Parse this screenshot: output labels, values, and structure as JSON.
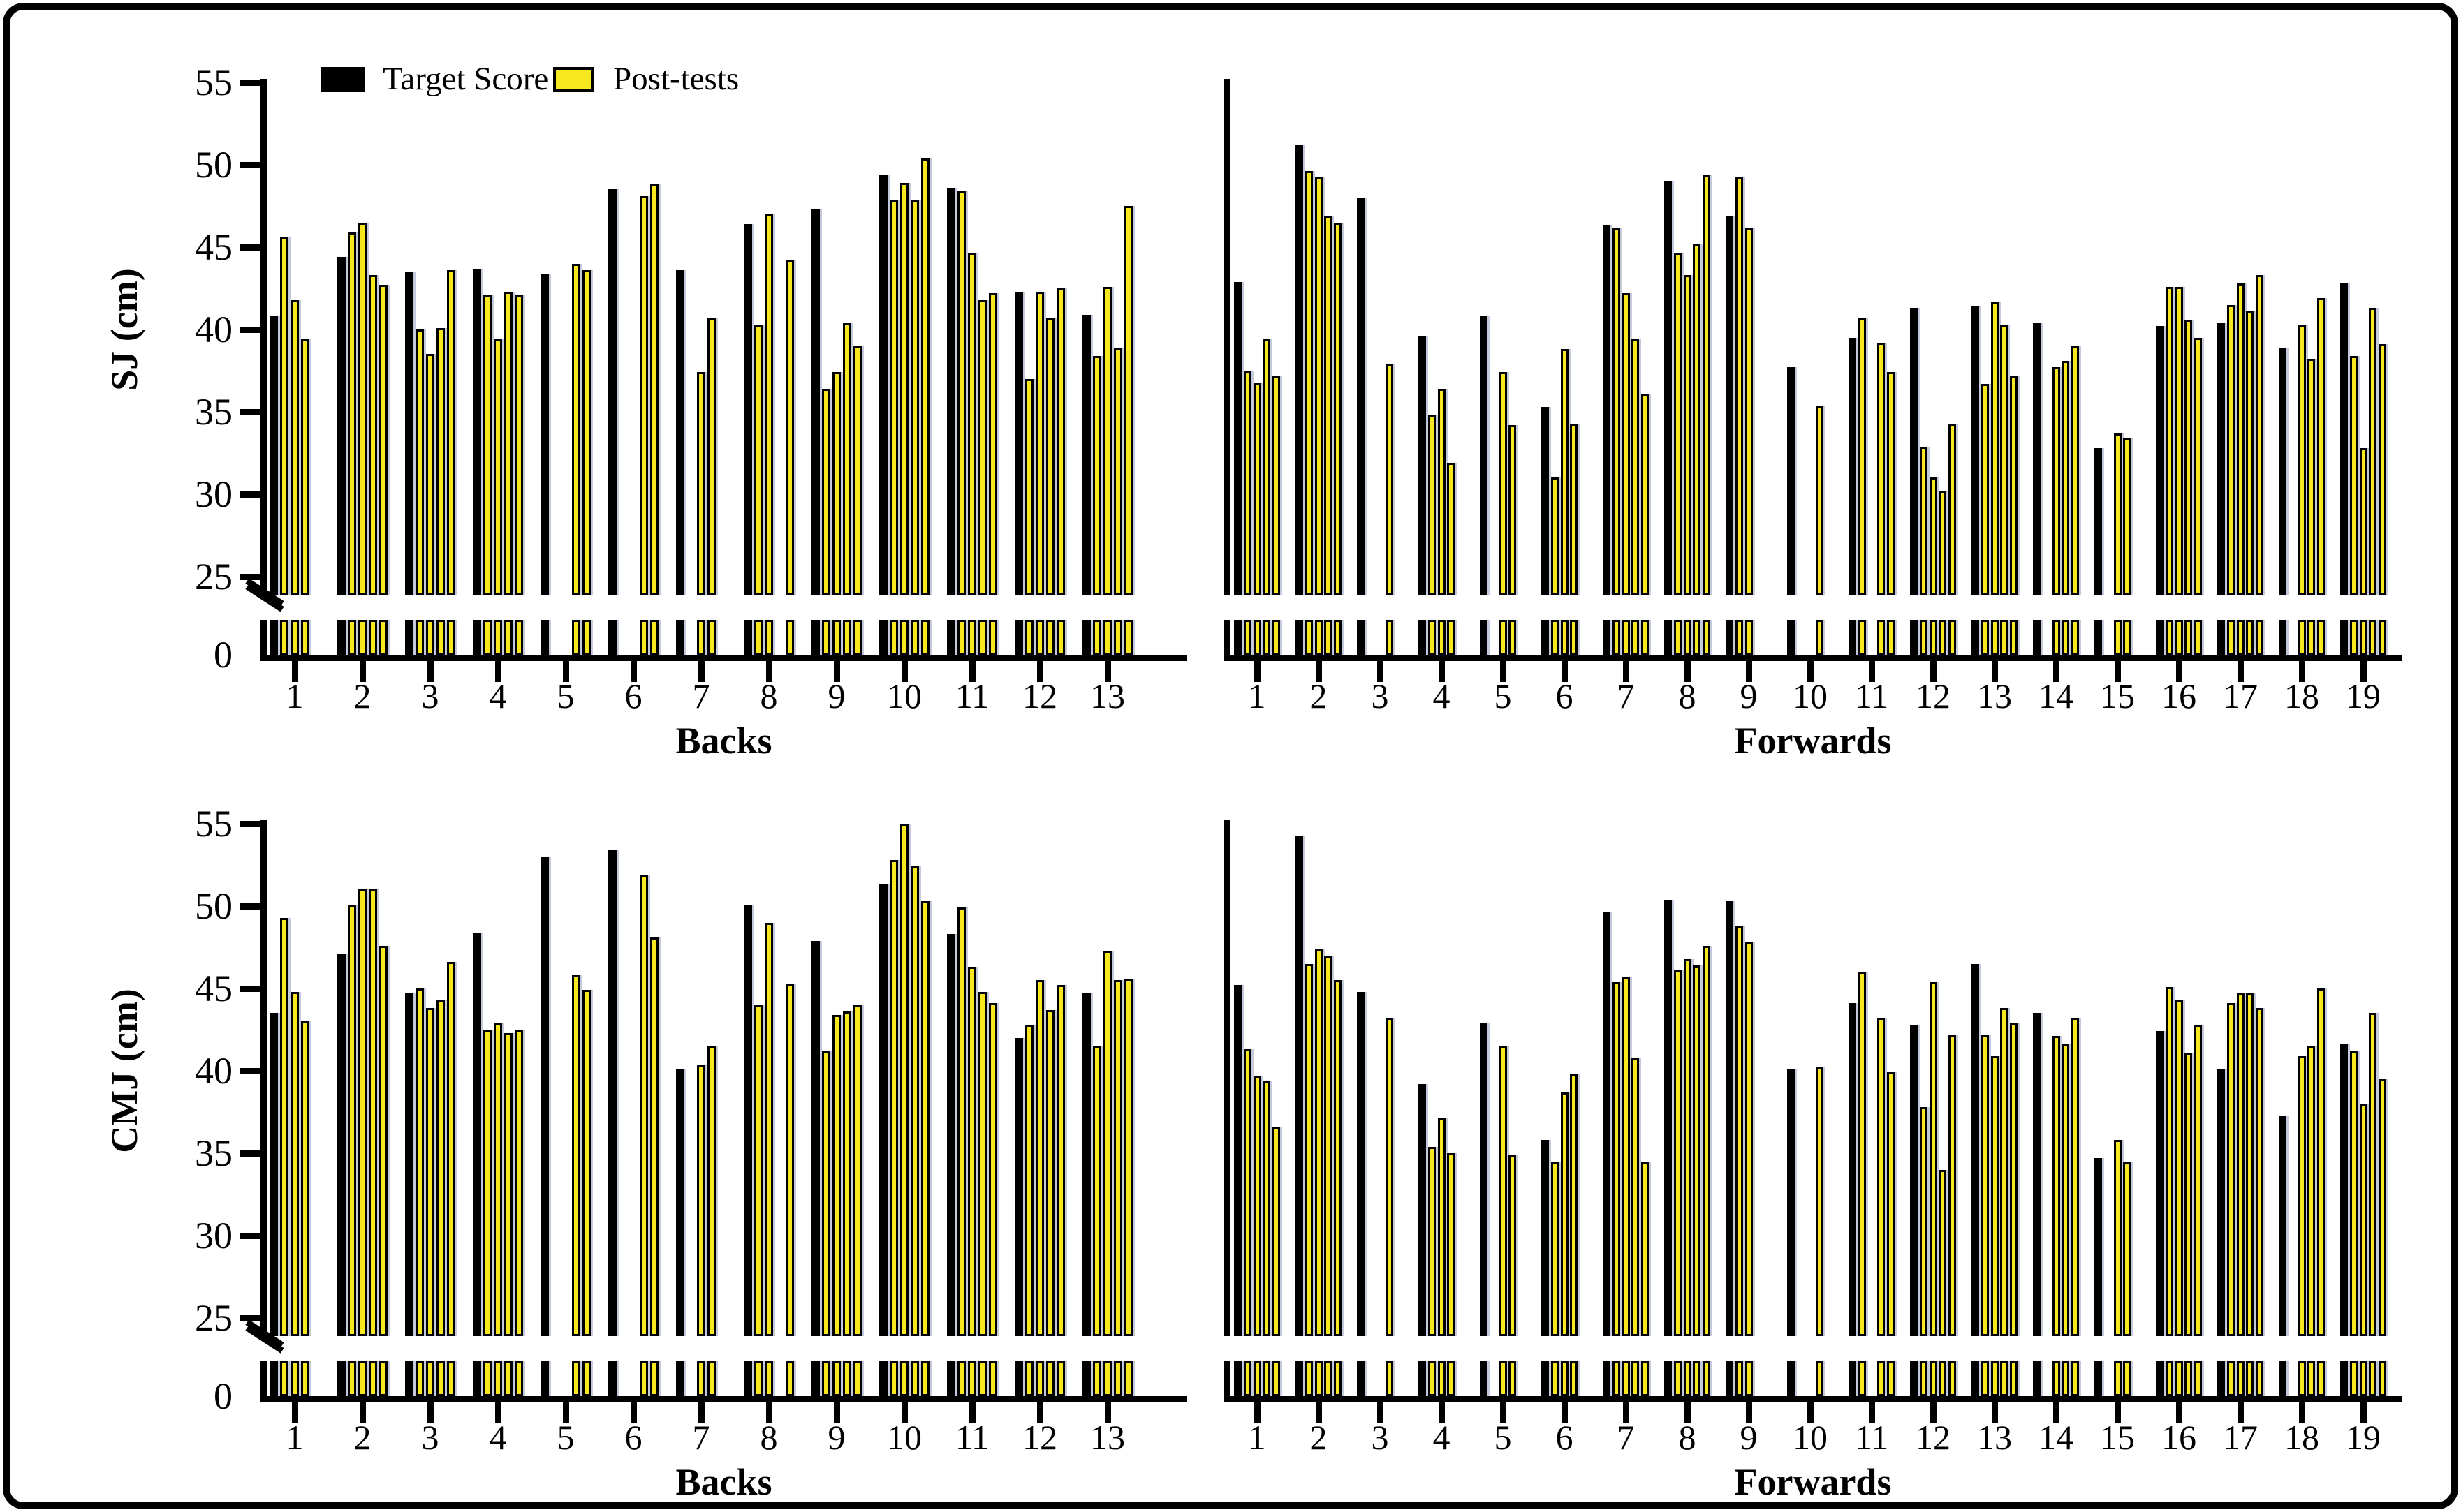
{
  "legend": {
    "target_label": "Target Score",
    "post_label": "Post-tests"
  },
  "colors": {
    "target": "#000000",
    "post": "#F7E71E",
    "bar_edge": "#949CBE"
  },
  "axis": {
    "y_ticks": [
      55,
      50,
      45,
      40,
      35,
      30,
      25
    ],
    "y_zero_label": "0",
    "axis_break": true,
    "y_main_range": [
      25,
      55
    ]
  },
  "chart_data": [
    {
      "type": "bar",
      "id": "sj-backs",
      "title": "Backs",
      "ylabel": "SJ (cm)",
      "xlabel": "Backs",
      "ylim_main": [
        25,
        55
      ],
      "axis_break": true,
      "legend_position": "top-left",
      "series_names": [
        "Target Score",
        "Post-tests"
      ],
      "groups": [
        {
          "x": "1",
          "target": 40.8,
          "post": [
            45.6,
            41.8,
            39.4,
            null
          ]
        },
        {
          "x": "2",
          "target": 44.4,
          "post": [
            45.9,
            46.5,
            43.3,
            42.7
          ]
        },
        {
          "x": "3",
          "target": 43.5,
          "post": [
            40.0,
            38.5,
            40.1,
            43.6
          ]
        },
        {
          "x": "4",
          "target": 43.7,
          "post": [
            42.1,
            39.4,
            42.3,
            42.1
          ]
        },
        {
          "x": "5",
          "target": 43.4,
          "post": [
            null,
            null,
            44.0,
            43.6
          ]
        },
        {
          "x": "6",
          "target": 48.5,
          "post": [
            null,
            null,
            48.1,
            48.8
          ]
        },
        {
          "x": "7",
          "target": 43.6,
          "post": [
            null,
            37.4,
            40.7,
            null
          ]
        },
        {
          "x": "8",
          "target": 46.4,
          "post": [
            40.3,
            47.0,
            null,
            44.2
          ]
        },
        {
          "x": "9",
          "target": 47.3,
          "post": [
            36.4,
            37.4,
            40.4,
            39.0
          ]
        },
        {
          "x": "10",
          "target": 49.4,
          "post": [
            47.9,
            48.9,
            47.9,
            50.4
          ]
        },
        {
          "x": "11",
          "target": 48.6,
          "post": [
            48.4,
            44.6,
            41.8,
            42.2
          ]
        },
        {
          "x": "12",
          "target": 42.3,
          "post": [
            37.0,
            42.3,
            40.7,
            42.5
          ]
        },
        {
          "x": "13",
          "target": 40.9,
          "post": [
            38.4,
            42.6,
            38.9,
            47.5
          ]
        }
      ]
    },
    {
      "type": "bar",
      "id": "sj-forwards",
      "title": "Forwards",
      "ylabel": "SJ (cm)",
      "xlabel": "Forwards",
      "ylim_main": [
        25,
        55
      ],
      "axis_break": true,
      "series_names": [
        "Target Score",
        "Post-tests"
      ],
      "groups": [
        {
          "x": "1",
          "target": 42.9,
          "post": [
            37.5,
            36.8,
            39.4,
            37.2
          ]
        },
        {
          "x": "2",
          "target": 51.2,
          "post": [
            49.6,
            49.3,
            46.9,
            46.5
          ]
        },
        {
          "x": "3",
          "target": 48.0,
          "post": [
            null,
            null,
            37.9,
            null
          ]
        },
        {
          "x": "4",
          "target": 39.6,
          "post": [
            34.8,
            36.4,
            31.9,
            null
          ]
        },
        {
          "x": "5",
          "target": 40.8,
          "post": [
            null,
            37.4,
            34.2,
            null
          ]
        },
        {
          "x": "6",
          "target": 35.3,
          "post": [
            31.0,
            38.8,
            34.3,
            null
          ]
        },
        {
          "x": "7",
          "target": 46.3,
          "post": [
            46.2,
            42.2,
            39.4,
            36.1
          ]
        },
        {
          "x": "8",
          "target": 49.0,
          "post": [
            44.6,
            43.3,
            45.2,
            49.4
          ]
        },
        {
          "x": "9",
          "target": 46.9,
          "post": [
            49.3,
            46.2,
            null,
            null
          ]
        },
        {
          "x": "10",
          "target": 37.7,
          "post": [
            null,
            null,
            35.4,
            null
          ]
        },
        {
          "x": "11",
          "target": 39.5,
          "post": [
            40.7,
            null,
            39.2,
            37.4
          ]
        },
        {
          "x": "12",
          "target": 41.3,
          "post": [
            32.9,
            31.0,
            30.2,
            34.3
          ]
        },
        {
          "x": "13",
          "target": 41.4,
          "post": [
            36.7,
            41.7,
            40.3,
            37.2
          ]
        },
        {
          "x": "14",
          "target": 40.4,
          "post": [
            null,
            37.7,
            38.1,
            39.0
          ]
        },
        {
          "x": "15",
          "target": 32.8,
          "post": [
            null,
            33.7,
            33.4,
            null
          ]
        },
        {
          "x": "16",
          "target": 40.2,
          "post": [
            42.6,
            42.6,
            40.6,
            39.5
          ]
        },
        {
          "x": "17",
          "target": 40.4,
          "post": [
            41.5,
            42.8,
            41.1,
            43.3
          ]
        },
        {
          "x": "18",
          "target": 38.9,
          "post": [
            null,
            40.3,
            38.2,
            41.9
          ]
        },
        {
          "x": "19",
          "target": 42.8,
          "post": [
            38.4,
            32.8,
            41.3,
            39.1
          ]
        }
      ]
    },
    {
      "type": "bar",
      "id": "cmj-backs",
      "title": "Backs",
      "ylabel": "CMJ (cm)",
      "xlabel": "Backs",
      "ylim_main": [
        25,
        55
      ],
      "axis_break": true,
      "series_names": [
        "Target Score",
        "Post-tests"
      ],
      "groups": [
        {
          "x": "1",
          "target": 43.5,
          "post": [
            49.3,
            44.8,
            43.0,
            null
          ]
        },
        {
          "x": "2",
          "target": 47.1,
          "post": [
            50.1,
            51.0,
            51.0,
            47.6
          ]
        },
        {
          "x": "3",
          "target": 44.7,
          "post": [
            45.0,
            43.8,
            44.3,
            46.6
          ]
        },
        {
          "x": "4",
          "target": 48.4,
          "post": [
            42.5,
            42.9,
            42.3,
            42.5
          ]
        },
        {
          "x": "5",
          "target": 53.0,
          "post": [
            null,
            null,
            45.8,
            44.9
          ]
        },
        {
          "x": "6",
          "target": 53.4,
          "post": [
            null,
            null,
            51.9,
            48.1
          ]
        },
        {
          "x": "7",
          "target": 40.1,
          "post": [
            null,
            40.4,
            41.5,
            null
          ]
        },
        {
          "x": "8",
          "target": 50.1,
          "post": [
            44.0,
            49.0,
            null,
            45.3
          ]
        },
        {
          "x": "9",
          "target": 47.9,
          "post": [
            41.2,
            43.4,
            43.6,
            44.0
          ]
        },
        {
          "x": "10",
          "target": 51.3,
          "post": [
            52.8,
            55.0,
            52.4,
            50.3
          ]
        },
        {
          "x": "11",
          "target": 48.3,
          "post": [
            49.9,
            46.3,
            44.8,
            44.1
          ]
        },
        {
          "x": "12",
          "target": 42.0,
          "post": [
            42.8,
            45.5,
            43.7,
            45.2
          ]
        },
        {
          "x": "13",
          "target": 44.7,
          "post": [
            41.5,
            47.3,
            45.5,
            45.6
          ]
        }
      ]
    },
    {
      "type": "bar",
      "id": "cmj-forwards",
      "title": "Forwards",
      "ylabel": "CMJ (cm)",
      "xlabel": "Forwards",
      "ylim_main": [
        25,
        55
      ],
      "axis_break": true,
      "series_names": [
        "Target Score",
        "Post-tests"
      ],
      "groups": [
        {
          "x": "1",
          "target": 45.2,
          "post": [
            41.3,
            39.7,
            39.4,
            36.6
          ]
        },
        {
          "x": "2",
          "target": 54.3,
          "post": [
            46.5,
            47.4,
            47.0,
            45.5
          ]
        },
        {
          "x": "3",
          "target": 44.8,
          "post": [
            null,
            null,
            43.2,
            null
          ]
        },
        {
          "x": "4",
          "target": 39.2,
          "post": [
            35.4,
            37.1,
            35.0,
            null
          ]
        },
        {
          "x": "5",
          "target": 42.9,
          "post": [
            null,
            41.5,
            34.9,
            null
          ]
        },
        {
          "x": "6",
          "target": 35.8,
          "post": [
            34.5,
            38.7,
            39.8,
            null
          ]
        },
        {
          "x": "7",
          "target": 49.6,
          "post": [
            45.4,
            45.7,
            40.8,
            34.5
          ]
        },
        {
          "x": "8",
          "target": 50.4,
          "post": [
            46.1,
            46.8,
            46.4,
            47.6
          ]
        },
        {
          "x": "9",
          "target": 50.3,
          "post": [
            48.8,
            47.8,
            null,
            null
          ]
        },
        {
          "x": "10",
          "target": 40.1,
          "post": [
            null,
            null,
            40.2,
            null
          ]
        },
        {
          "x": "11",
          "target": 44.1,
          "post": [
            46.0,
            null,
            43.2,
            39.9
          ]
        },
        {
          "x": "12",
          "target": 42.8,
          "post": [
            37.8,
            45.4,
            34.0,
            42.2
          ]
        },
        {
          "x": "13",
          "target": 46.5,
          "post": [
            42.2,
            40.9,
            43.8,
            42.9
          ]
        },
        {
          "x": "14",
          "target": 43.5,
          "post": [
            null,
            42.1,
            41.6,
            43.2
          ]
        },
        {
          "x": "15",
          "target": 34.7,
          "post": [
            null,
            35.8,
            34.5,
            null
          ]
        },
        {
          "x": "16",
          "target": 42.4,
          "post": [
            45.1,
            44.3,
            41.1,
            42.8
          ]
        },
        {
          "x": "17",
          "target": 40.1,
          "post": [
            44.1,
            44.7,
            44.7,
            43.8
          ]
        },
        {
          "x": "18",
          "target": 37.3,
          "post": [
            null,
            40.9,
            41.5,
            45.0
          ]
        },
        {
          "x": "19",
          "target": 41.6,
          "post": [
            41.2,
            38.0,
            43.5,
            39.5
          ]
        }
      ]
    }
  ]
}
